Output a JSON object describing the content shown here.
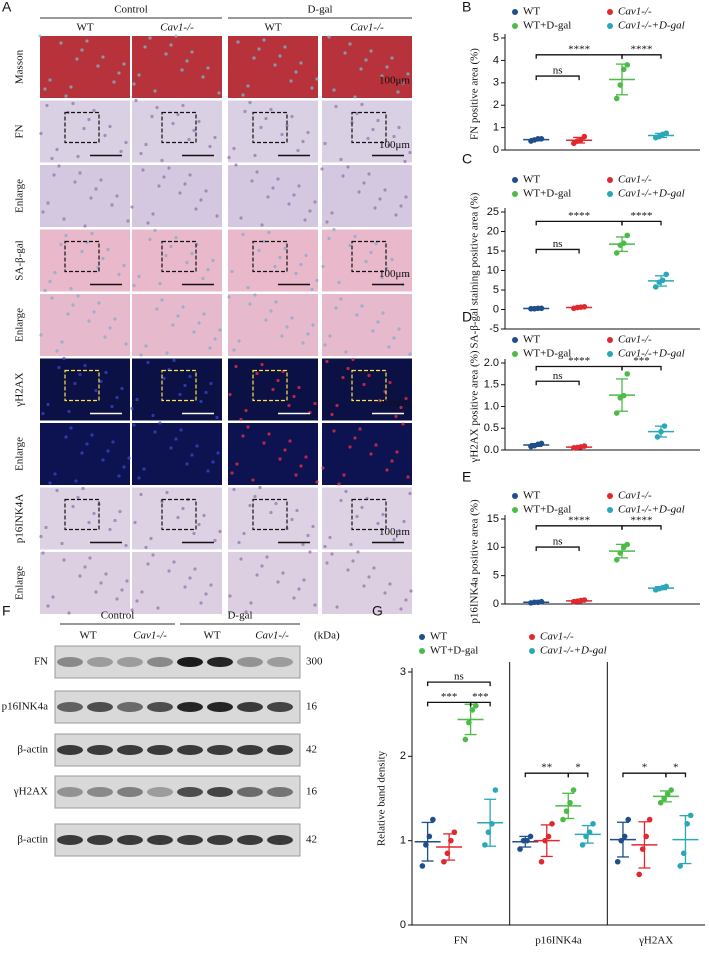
{
  "panel_a": {
    "label": "A",
    "groups": [
      "Control",
      "D-gal"
    ],
    "columns": [
      "WT",
      "Cav1-/-",
      "WT",
      "Cav1-/-"
    ],
    "rows": [
      "Masson",
      "FN",
      "Enlarge",
      "SA-β-gal",
      "Enlarge",
      "γH2AX",
      "Enlarge",
      "p16INK4A",
      "Enlarge"
    ],
    "scale_bar": "100μm"
  },
  "chart_data": [
    {
      "type": "dot",
      "label": "B",
      "ylabel": "FN positive area (%)",
      "ylim": [
        0,
        5
      ],
      "yticks": [
        0,
        1,
        2,
        3,
        4,
        5
      ],
      "series": [
        {
          "name": "WT",
          "color": "#1f4e8c",
          "values": [
            0.4,
            0.45,
            0.5,
            0.5
          ]
        },
        {
          "name": "Cav1-/-",
          "color": "#e0282e",
          "values": [
            0.3,
            0.4,
            0.45,
            0.6
          ]
        },
        {
          "name": "WT+D-gal",
          "color": "#4cbb47",
          "values": [
            2.3,
            2.9,
            3.6,
            3.8
          ]
        },
        {
          "name": "Cav1-/-+D-gal",
          "color": "#2aa7b8",
          "values": [
            0.55,
            0.6,
            0.7,
            0.75
          ]
        }
      ],
      "annotations": [
        "****",
        "****",
        "ns"
      ]
    },
    {
      "type": "dot",
      "label": "C",
      "ylabel": "SA-β-gal staining positive area (%)",
      "ylim": [
        -5,
        25
      ],
      "yticks": [
        -5,
        0,
        5,
        10,
        15,
        20,
        25
      ],
      "series": [
        {
          "name": "WT",
          "color": "#1f4e8c",
          "values": [
            0.2,
            0.2,
            0.3,
            0.3
          ]
        },
        {
          "name": "Cav1-/-",
          "color": "#e0282e",
          "values": [
            0.3,
            0.5,
            0.6,
            0.7
          ]
        },
        {
          "name": "WT+D-gal",
          "color": "#4cbb47",
          "values": [
            14.5,
            16.5,
            17,
            19
          ]
        },
        {
          "name": "Cav1-/-+D-gal",
          "color": "#2aa7b8",
          "values": [
            5.8,
            7,
            7.5,
            9
          ]
        }
      ],
      "annotations": [
        "****",
        "****",
        "ns"
      ]
    },
    {
      "type": "dot",
      "label": "D",
      "ylabel": "γH2AX positive area (%)",
      "ylim": [
        0,
        2
      ],
      "yticks": [
        {
          "value": 0,
          "label": "0.0"
        },
        {
          "value": 0.5,
          "label": "0.5"
        },
        {
          "value": 1,
          "label": "1.0"
        },
        {
          "value": 1.5,
          "label": "1.5"
        },
        {
          "value": 2,
          "label": "2.0"
        }
      ],
      "series": [
        {
          "name": "WT",
          "color": "#1f4e8c",
          "values": [
            0.08,
            0.1,
            0.13,
            0.15
          ]
        },
        {
          "name": "Cav1-/-",
          "color": "#e0282e",
          "values": [
            0.05,
            0.06,
            0.07,
            0.09
          ]
        },
        {
          "name": "WT+D-gal",
          "color": "#4cbb47",
          "values": [
            0.85,
            1.2,
            1.25,
            1.75
          ]
        },
        {
          "name": "Cav1-/-+D-gal",
          "color": "#2aa7b8",
          "values": [
            0.3,
            0.42,
            0.55
          ]
        }
      ],
      "annotations": [
        "****",
        "***",
        "ns"
      ]
    },
    {
      "type": "dot",
      "label": "E",
      "ylabel": "p16INK4a positive area (%)",
      "ylim": [
        0,
        15
      ],
      "yticks": [
        0,
        5,
        10,
        15
      ],
      "series": [
        {
          "name": "WT",
          "color": "#1f4e8c",
          "values": [
            0.2,
            0.3,
            0.3,
            0.4
          ]
        },
        {
          "name": "Cav1-/-",
          "color": "#e0282e",
          "values": [
            0.4,
            0.5,
            0.6,
            0.7
          ]
        },
        {
          "name": "WT+D-gal",
          "color": "#4cbb47",
          "values": [
            7.8,
            9,
            10,
            10.5
          ]
        },
        {
          "name": "Cav1-/-+D-gal",
          "color": "#2aa7b8",
          "values": [
            2.5,
            2.7,
            2.9,
            3.1
          ]
        }
      ],
      "annotations": [
        "****",
        "****",
        "ns"
      ]
    },
    {
      "type": "dot",
      "label": "G",
      "ylabel": "Relative band density",
      "categories": [
        "FN",
        "p16INK4a",
        "γH2AX"
      ],
      "ylim": [
        0,
        3
      ],
      "yticks": [
        0,
        1,
        2,
        3
      ],
      "series": [
        {
          "name": "WT",
          "color": "#1f4e8c",
          "values": [
            [
              0.7,
              0.95,
              1.05,
              1.25
            ],
            [
              0.9,
              1,
              1,
              1.05
            ],
            [
              0.75,
              1,
              1.05,
              1.25
            ]
          ]
        },
        {
          "name": "Cav1-/-",
          "color": "#e0282e",
          "values": [
            [
              0.75,
              0.85,
              1,
              1.1
            ],
            [
              0.75,
              1,
              1.05,
              1.2
            ],
            [
              0.6,
              0.9,
              1.05,
              1.25
            ]
          ]
        },
        {
          "name": "WT+D-gal",
          "color": "#4cbb47",
          "values": [
            [
              2.2,
              2.4,
              2.55,
              2.6
            ],
            [
              1.25,
              1.35,
              1.45,
              1.6
            ],
            [
              1.45,
              1.5,
              1.55,
              1.6
            ]
          ]
        },
        {
          "name": "Cav1-/-+D-gal",
          "color": "#2aa7b8",
          "values": [
            [
              0.95,
              1.1,
              1.2,
              1.6
            ],
            [
              0.95,
              1.05,
              1.1,
              1.2
            ],
            [
              0.7,
              0.85,
              1.2,
              1.3
            ]
          ]
        }
      ],
      "annotations": [
        "ns",
        "***",
        "***",
        "**",
        "*",
        "*",
        "*"
      ]
    }
  ],
  "panel_f": {
    "label": "F",
    "groups": [
      "Control",
      "D-gal"
    ],
    "columns": [
      "WT",
      "Cav1-/-",
      "WT",
      "Cav1-/-"
    ],
    "unit": "(kDa)",
    "rows": [
      {
        "name": "FN",
        "kda": "300"
      },
      {
        "name": "p16INK4a",
        "kda": "16"
      },
      {
        "name": "β-actin",
        "kda": "42"
      },
      {
        "name": "γH2AX",
        "kda": "16"
      },
      {
        "name": "β-actin",
        "kda": "42"
      }
    ]
  }
}
